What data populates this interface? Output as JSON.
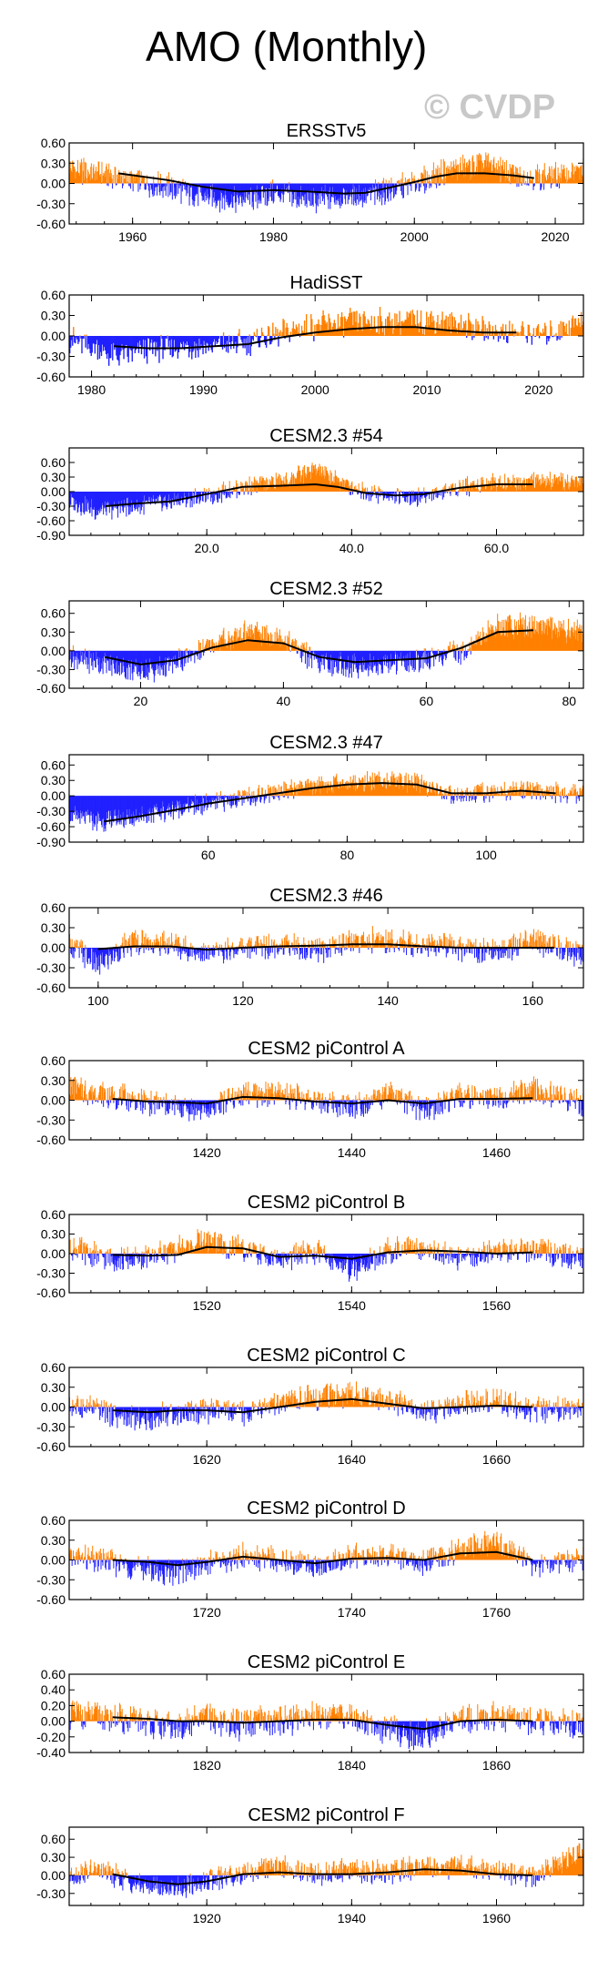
{
  "figure_title": "AMO (Monthly)",
  "watermark": "© CVDP",
  "colors": {
    "positive": "#ff8000",
    "negative": "#2020ff",
    "smooth": "#000000",
    "frame": "#000000"
  },
  "chart_data": [
    {
      "type": "bar",
      "title": "ERSSTv5",
      "xlim": [
        1951,
        2024
      ],
      "ylim": [
        -0.6,
        0.6
      ],
      "yticks": [
        0.6,
        0.3,
        0.0,
        -0.3,
        -0.6
      ],
      "ytick_labels": [
        "0.60",
        "0.30",
        "0.00",
        "-0.30",
        "-0.60"
      ],
      "xticks": [
        1960,
        1980,
        2000,
        2020
      ],
      "xtick_labels": [
        "1960",
        "1980",
        "2000",
        "2020"
      ],
      "anomaly_anchors_x": [
        1951,
        1955,
        1960,
        1965,
        1970,
        1975,
        1980,
        1985,
        1990,
        1995,
        2000,
        2005,
        2010,
        2015,
        2020,
        2024
      ],
      "anomaly_anchors_y": [
        0.2,
        0.15,
        0.05,
        -0.05,
        -0.2,
        -0.25,
        -0.15,
        -0.25,
        -0.2,
        -0.15,
        0.0,
        0.2,
        0.3,
        0.1,
        0.1,
        0.2
      ],
      "smooth_x": [
        1958,
        1965,
        1970,
        1975,
        1980,
        1985,
        1990,
        1993,
        1997,
        2000,
        2003,
        2006,
        2010,
        2014,
        2017
      ],
      "smooth_y": [
        0.15,
        0.05,
        -0.05,
        -0.12,
        -0.1,
        -0.12,
        -0.15,
        -0.14,
        -0.05,
        0.02,
        0.1,
        0.15,
        0.15,
        0.12,
        0.08
      ]
    },
    {
      "type": "bar",
      "title": "HadiSST",
      "xlim": [
        1978,
        2024
      ],
      "ylim": [
        -0.6,
        0.6
      ],
      "yticks": [
        0.6,
        0.3,
        0.0,
        -0.3,
        -0.6
      ],
      "ytick_labels": [
        "0.60",
        "0.30",
        "0.00",
        "-0.30",
        "-0.60"
      ],
      "xticks": [
        1980,
        1990,
        2000,
        2010,
        2020
      ],
      "xtick_labels": [
        "1980",
        "1990",
        "2000",
        "2010",
        "2020"
      ],
      "anomaly_anchors_x": [
        1978,
        1982,
        1985,
        1988,
        1991,
        1994,
        1997,
        2000,
        2003,
        2006,
        2009,
        2012,
        2015,
        2018,
        2021,
        2024
      ],
      "anomaly_anchors_y": [
        -0.05,
        -0.3,
        -0.2,
        -0.15,
        -0.15,
        -0.1,
        0.05,
        0.15,
        0.2,
        0.2,
        0.25,
        0.2,
        0.1,
        0.05,
        0.05,
        0.25
      ],
      "smooth_x": [
        1982,
        1985,
        1988,
        1991,
        1994,
        1997,
        2000,
        2003,
        2006,
        2009,
        2012,
        2015,
        2018
      ],
      "smooth_y": [
        -0.15,
        -0.18,
        -0.18,
        -0.15,
        -0.12,
        -0.02,
        0.05,
        0.1,
        0.13,
        0.13,
        0.08,
        0.05,
        0.05
      ]
    },
    {
      "type": "bar",
      "title": "CESM2.3 #54",
      "xlim": [
        1,
        72
      ],
      "ylim": [
        -0.9,
        0.9
      ],
      "yticks": [
        0.6,
        0.3,
        0.0,
        -0.3,
        -0.6,
        -0.9
      ],
      "ytick_labels": [
        "0.60",
        "0.30",
        "0.00",
        "-0.30",
        "-0.60",
        "-0.90"
      ],
      "xticks": [
        20,
        40,
        60
      ],
      "xtick_labels": [
        "20.0",
        "40.0",
        "60.0"
      ],
      "anomaly_anchors_x": [
        1,
        5,
        10,
        15,
        20,
        25,
        30,
        35,
        40,
        45,
        50,
        55,
        60,
        65,
        72
      ],
      "anomaly_anchors_y": [
        -0.2,
        -0.4,
        -0.3,
        -0.2,
        -0.1,
        0.1,
        0.2,
        0.45,
        0.1,
        -0.1,
        -0.1,
        0.1,
        0.2,
        0.2,
        0.2
      ],
      "smooth_x": [
        6,
        10,
        15,
        20,
        25,
        30,
        35,
        38,
        42,
        46,
        50,
        55,
        60,
        65
      ],
      "smooth_y": [
        -0.3,
        -0.25,
        -0.2,
        -0.05,
        0.1,
        0.12,
        0.15,
        0.1,
        -0.03,
        -0.08,
        -0.05,
        0.08,
        0.15,
        0.15
      ]
    },
    {
      "type": "bar",
      "title": "CESM2.3 #52",
      "xlim": [
        10,
        82
      ],
      "ylim": [
        -0.6,
        0.8
      ],
      "yticks": [
        0.6,
        0.3,
        0.0,
        -0.3,
        -0.6
      ],
      "ytick_labels": [
        "0.60",
        "0.30",
        "0.00",
        "-0.30",
        "-0.60"
      ],
      "xticks": [
        20,
        40,
        60,
        80
      ],
      "xtick_labels": [
        "20",
        "40",
        "60",
        "80"
      ],
      "anomaly_anchors_x": [
        10,
        15,
        20,
        25,
        30,
        35,
        40,
        45,
        50,
        55,
        60,
        65,
        70,
        75,
        82
      ],
      "anomaly_anchors_y": [
        -0.1,
        -0.2,
        -0.35,
        -0.2,
        0.1,
        0.3,
        0.2,
        -0.2,
        -0.25,
        -0.2,
        -0.15,
        0.0,
        0.4,
        0.4,
        0.3
      ],
      "smooth_x": [
        15,
        20,
        25,
        30,
        35,
        40,
        45,
        50,
        55,
        60,
        65,
        70,
        75
      ],
      "smooth_y": [
        -0.1,
        -0.22,
        -0.15,
        0.05,
        0.17,
        0.12,
        -0.1,
        -0.18,
        -0.15,
        -0.12,
        0.05,
        0.3,
        0.33
      ]
    },
    {
      "type": "bar",
      "title": "CESM2.3 #47",
      "xlim": [
        40,
        114
      ],
      "ylim": [
        -0.9,
        0.8
      ],
      "yticks": [
        0.6,
        0.3,
        0.0,
        -0.3,
        -0.6,
        -0.9
      ],
      "ytick_labels": [
        "0.60",
        "0.30",
        "0.00",
        "-0.30",
        "-0.60",
        "-0.90"
      ],
      "xticks": [
        60,
        80,
        100
      ],
      "xtick_labels": [
        "60",
        "80",
        "100"
      ],
      "anomaly_anchors_x": [
        40,
        45,
        50,
        55,
        60,
        65,
        70,
        75,
        80,
        85,
        90,
        95,
        100,
        105,
        114
      ],
      "anomaly_anchors_y": [
        -0.4,
        -0.5,
        -0.4,
        -0.25,
        -0.15,
        -0.05,
        0.1,
        0.2,
        0.25,
        0.3,
        0.25,
        0.0,
        0.05,
        0.1,
        0.05
      ],
      "smooth_x": [
        45,
        50,
        55,
        60,
        65,
        70,
        75,
        80,
        85,
        90,
        95,
        100,
        105,
        110
      ],
      "smooth_y": [
        -0.5,
        -0.4,
        -0.28,
        -0.15,
        -0.05,
        0.05,
        0.15,
        0.22,
        0.25,
        0.22,
        0.05,
        0.05,
        0.1,
        0.05
      ]
    },
    {
      "type": "bar",
      "title": "CESM2.3 #46",
      "xlim": [
        96,
        167
      ],
      "ylim": [
        -0.6,
        0.6
      ],
      "yticks": [
        0.6,
        0.3,
        0.0,
        -0.3,
        -0.6
      ],
      "ytick_labels": [
        "0.60",
        "0.30",
        "0.00",
        "-0.30",
        "-0.60"
      ],
      "xticks": [
        100,
        120,
        140,
        160
      ],
      "xtick_labels": [
        "100",
        "120",
        "140",
        "160"
      ],
      "anomaly_anchors_x": [
        96,
        100,
        105,
        110,
        115,
        120,
        125,
        130,
        135,
        140,
        145,
        150,
        155,
        160,
        167
      ],
      "anomaly_anchors_y": [
        0.05,
        -0.25,
        0.1,
        0.05,
        -0.1,
        0.0,
        0.05,
        -0.05,
        0.1,
        0.1,
        0.05,
        0.0,
        -0.05,
        0.1,
        -0.1
      ],
      "smooth_x": [
        100,
        105,
        110,
        115,
        120,
        125,
        130,
        135,
        140,
        145,
        150,
        155,
        160,
        163
      ],
      "smooth_y": [
        -0.02,
        0.02,
        0.02,
        -0.03,
        0.0,
        0.02,
        0.03,
        0.05,
        0.05,
        0.02,
        0.0,
        0.0,
        0.0,
        0.0
      ]
    },
    {
      "type": "bar",
      "title": "CESM2 piControl A",
      "xlim": [
        1401,
        1472
      ],
      "ylim": [
        -0.6,
        0.6
      ],
      "yticks": [
        0.6,
        0.3,
        0.0,
        -0.3,
        -0.6
      ],
      "ytick_labels": [
        "0.60",
        "0.30",
        "0.00",
        "-0.30",
        "-0.60"
      ],
      "xticks": [
        1420,
        1440,
        1460
      ],
      "xtick_labels": [
        "1420",
        "1440",
        "1460"
      ],
      "anomaly_anchors_x": [
        1401,
        1405,
        1410,
        1415,
        1420,
        1425,
        1430,
        1435,
        1440,
        1445,
        1450,
        1455,
        1460,
        1465,
        1472
      ],
      "anomaly_anchors_y": [
        0.2,
        0.1,
        0.0,
        -0.1,
        -0.15,
        0.1,
        0.1,
        0.0,
        -0.1,
        0.1,
        -0.15,
        0.05,
        0.05,
        0.15,
        -0.05
      ],
      "smooth_x": [
        1407,
        1412,
        1416,
        1420,
        1425,
        1430,
        1435,
        1440,
        1445,
        1450,
        1455,
        1460,
        1465
      ],
      "smooth_y": [
        0.02,
        -0.02,
        -0.03,
        -0.05,
        0.05,
        0.03,
        -0.02,
        -0.05,
        0.0,
        -0.05,
        0.02,
        0.02,
        0.03
      ]
    },
    {
      "type": "bar",
      "title": "CESM2 piControl B",
      "xlim": [
        1501,
        1572
      ],
      "ylim": [
        -0.6,
        0.6
      ],
      "yticks": [
        0.6,
        0.3,
        0.0,
        -0.3,
        -0.6
      ],
      "ytick_labels": [
        "0.60",
        "0.30",
        "0.00",
        "-0.30",
        "-0.60"
      ],
      "xticks": [
        1520,
        1540,
        1560
      ],
      "xtick_labels": [
        "1520",
        "1540",
        "1560"
      ],
      "anomaly_anchors_x": [
        1501,
        1505,
        1510,
        1515,
        1520,
        1525,
        1530,
        1535,
        1540,
        1545,
        1550,
        1555,
        1560,
        1565,
        1572
      ],
      "anomaly_anchors_y": [
        0.1,
        -0.05,
        -0.1,
        0.05,
        0.2,
        0.05,
        -0.1,
        0.05,
        -0.25,
        0.05,
        0.1,
        -0.1,
        0.05,
        0.05,
        -0.1
      ],
      "smooth_x": [
        1507,
        1512,
        1516,
        1520,
        1525,
        1530,
        1535,
        1540,
        1545,
        1550,
        1555,
        1560,
        1565
      ],
      "smooth_y": [
        -0.02,
        -0.03,
        -0.02,
        0.1,
        0.08,
        -0.05,
        -0.03,
        -0.08,
        0.02,
        0.05,
        0.03,
        0.0,
        0.02
      ]
    },
    {
      "type": "bar",
      "title": "CESM2 piControl C",
      "xlim": [
        1601,
        1672
      ],
      "ylim": [
        -0.6,
        0.6
      ],
      "yticks": [
        0.6,
        0.3,
        0.0,
        -0.3,
        -0.6
      ],
      "ytick_labels": [
        "0.60",
        "0.30",
        "0.00",
        "-0.30",
        "-0.60"
      ],
      "xticks": [
        1620,
        1640,
        1660
      ],
      "xtick_labels": [
        "1620",
        "1640",
        "1660"
      ],
      "anomaly_anchors_x": [
        1601,
        1605,
        1610,
        1615,
        1620,
        1625,
        1630,
        1635,
        1640,
        1645,
        1650,
        1655,
        1660,
        1665,
        1672
      ],
      "anomaly_anchors_y": [
        0.05,
        -0.05,
        -0.2,
        -0.1,
        -0.05,
        -0.1,
        0.05,
        0.15,
        0.2,
        0.1,
        -0.1,
        0.05,
        0.1,
        -0.05,
        0.0
      ],
      "smooth_x": [
        1607,
        1612,
        1616,
        1620,
        1625,
        1630,
        1635,
        1640,
        1645,
        1650,
        1655,
        1660,
        1665
      ],
      "smooth_y": [
        -0.05,
        -0.08,
        -0.05,
        -0.05,
        -0.08,
        0.0,
        0.08,
        0.12,
        0.05,
        -0.02,
        0.0,
        0.02,
        0.0
      ]
    },
    {
      "type": "bar",
      "title": "CESM2 piControl D",
      "xlim": [
        1701,
        1772
      ],
      "ylim": [
        -0.6,
        0.6
      ],
      "yticks": [
        0.6,
        0.3,
        0.0,
        -0.3,
        -0.6
      ],
      "ytick_labels": [
        "0.60",
        "0.30",
        "0.00",
        "-0.30",
        "-0.60"
      ],
      "xticks": [
        1720,
        1740,
        1760
      ],
      "xtick_labels": [
        "1720",
        "1740",
        "1760"
      ],
      "anomaly_anchors_x": [
        1701,
        1705,
        1710,
        1715,
        1720,
        1725,
        1730,
        1735,
        1740,
        1745,
        1750,
        1755,
        1760,
        1765,
        1772
      ],
      "anomaly_anchors_y": [
        0.05,
        0.0,
        -0.1,
        -0.2,
        -0.05,
        0.05,
        0.0,
        -0.1,
        0.05,
        0.05,
        -0.05,
        0.15,
        0.25,
        -0.1,
        0.0
      ],
      "smooth_x": [
        1707,
        1712,
        1716,
        1720,
        1725,
        1730,
        1735,
        1740,
        1745,
        1750,
        1755,
        1760,
        1765
      ],
      "smooth_y": [
        0.0,
        -0.03,
        -0.08,
        -0.03,
        0.05,
        0.0,
        -0.05,
        0.02,
        0.03,
        0.0,
        0.1,
        0.12,
        0.0
      ]
    },
    {
      "type": "bar",
      "title": "CESM2 piControl E",
      "xlim": [
        1801,
        1872
      ],
      "ylim": [
        -0.4,
        0.6
      ],
      "yticks": [
        0.6,
        0.4,
        0.2,
        0.0,
        -0.2,
        -0.4
      ],
      "ytick_labels": [
        "0.60",
        "0.40",
        "0.20",
        "0.00",
        "-0.20",
        "-0.40"
      ],
      "xticks": [
        1820,
        1840,
        1860
      ],
      "xtick_labels": [
        "1820",
        "1840",
        "1860"
      ],
      "anomaly_anchors_x": [
        1801,
        1805,
        1810,
        1815,
        1820,
        1825,
        1830,
        1835,
        1840,
        1845,
        1850,
        1855,
        1860,
        1865,
        1872
      ],
      "anomaly_anchors_y": [
        0.1,
        0.05,
        0.0,
        -0.1,
        0.05,
        -0.05,
        0.0,
        0.1,
        0.05,
        -0.1,
        -0.2,
        0.05,
        0.05,
        0.0,
        -0.05
      ],
      "smooth_x": [
        1807,
        1812,
        1816,
        1820,
        1825,
        1830,
        1835,
        1840,
        1845,
        1850,
        1855,
        1860,
        1865
      ],
      "smooth_y": [
        0.05,
        0.03,
        0.0,
        0.0,
        -0.02,
        0.0,
        0.02,
        0.02,
        -0.05,
        -0.1,
        0.0,
        0.02,
        0.0
      ]
    },
    {
      "type": "bar",
      "title": "CESM2 piControl F",
      "xlim": [
        1901,
        1972
      ],
      "ylim": [
        -0.5,
        0.8
      ],
      "yticks": [
        0.6,
        0.3,
        0.0,
        -0.3
      ],
      "ytick_labels": [
        "0.60",
        "0.30",
        "0.00",
        "-0.30"
      ],
      "xticks": [
        1920,
        1940,
        1960
      ],
      "xtick_labels": [
        "1920",
        "1940",
        "1960"
      ],
      "anomaly_anchors_x": [
        1901,
        1905,
        1910,
        1915,
        1920,
        1925,
        1930,
        1935,
        1940,
        1945,
        1950,
        1955,
        1960,
        1965,
        1972
      ],
      "anomaly_anchors_y": [
        0.0,
        0.1,
        -0.15,
        -0.2,
        -0.1,
        0.05,
        0.15,
        0.0,
        0.1,
        0.05,
        0.15,
        0.15,
        0.05,
        0.0,
        0.4
      ],
      "smooth_x": [
        1907,
        1912,
        1916,
        1920,
        1925,
        1930,
        1935,
        1940,
        1945,
        1950,
        1955,
        1960,
        1965
      ],
      "smooth_y": [
        0.02,
        -0.1,
        -0.15,
        -0.1,
        0.02,
        0.05,
        0.02,
        0.02,
        0.05,
        0.1,
        0.08,
        0.02,
        0.0
      ]
    }
  ]
}
